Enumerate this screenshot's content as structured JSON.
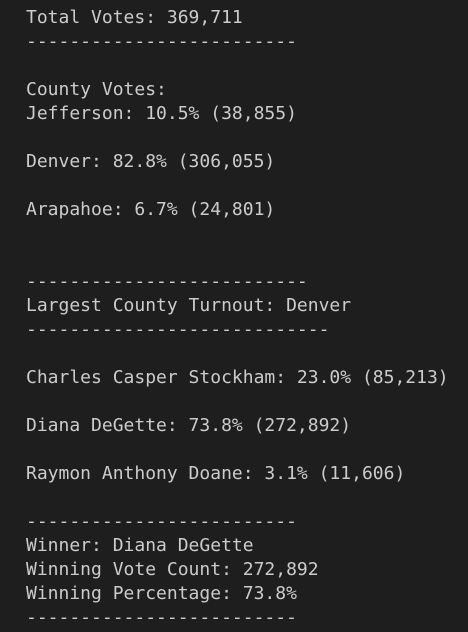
{
  "lines": [
    "Total Votes: 369,711",
    "-------------------------",
    "County Votes:",
    "Jefferson: 10.5% (38,855)",
    "Denver: 82.8% (306,055)",
    "Arapahoe: 6.7% (24,801)",
    "--------------------------",
    "Largest County Turnout: Denver",
    "----------------------------",
    "Charles Casper Stockham: 23.0% (85,213)",
    "Diana DeGette: 73.8% (272,892)",
    "Raymon Anthony Doane: 3.1% (11,606)",
    "-------------------------",
    "Winner: Diana DeGette",
    "Winning Vote Count: 272,892",
    "Winning Percentage: 73.8%",
    "-------------------------"
  ]
}
